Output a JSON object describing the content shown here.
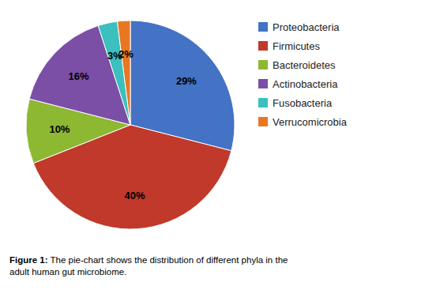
{
  "chart_data": {
    "type": "pie",
    "categories": [
      "Proteobacteria",
      "Firmicutes",
      "Bacteroidetes",
      "Actinobacteria",
      "Fusobacteria",
      "Verrucomicrobia"
    ],
    "values": [
      29,
      40,
      10,
      16,
      3,
      2
    ],
    "value_labels": [
      "29%",
      "40%",
      "10%",
      "16%",
      "3%",
      "2%"
    ],
    "colors": [
      "#4472c4",
      "#c0392b",
      "#8db832",
      "#7b4fa6",
      "#3bbfbf",
      "#e87722"
    ],
    "data_labels": true,
    "legend": "right",
    "annotations": [
      "Figure 1:",
      " The pie-chart shows the distribution of different phyla in the\nadult human gut microbiome."
    ]
  }
}
